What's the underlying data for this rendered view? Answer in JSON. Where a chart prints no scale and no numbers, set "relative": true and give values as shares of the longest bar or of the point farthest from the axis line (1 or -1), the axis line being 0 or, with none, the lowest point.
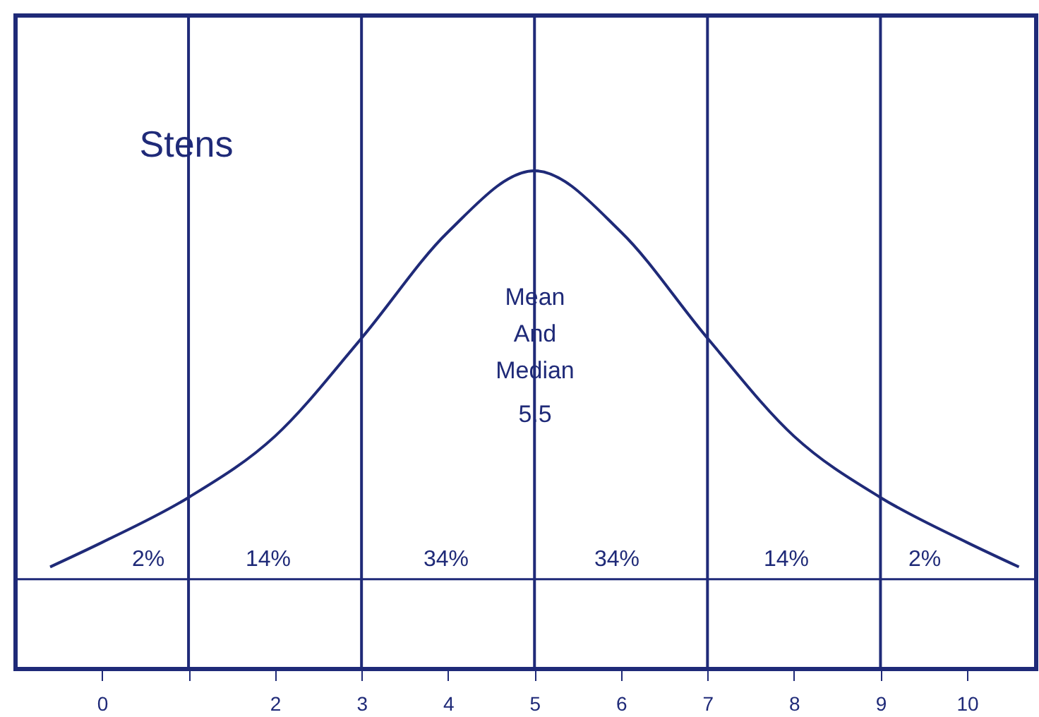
{
  "chart_data": {
    "type": "line",
    "relative": true,
    "x": [
      -0.6,
      0,
      1,
      2,
      3,
      4,
      5,
      6,
      7,
      8,
      9,
      10,
      10.6
    ],
    "series": [
      {
        "color": "#1f2a78",
        "values": [
          0.03,
          0.09,
          0.2,
          0.35,
          0.59,
          0.85,
          1,
          0.85,
          0.59,
          0.35,
          0.2,
          0.09,
          0.03
        ]
      }
    ],
    "xlim": [
      -1,
      10.8
    ],
    "xticks": [
      0,
      {
        "value": 1,
        "label": null
      },
      2,
      3,
      4,
      5,
      6,
      7,
      8,
      9,
      10
    ],
    "ref_lines": [
      {
        "axis": "x",
        "value": 1,
        "color": "#1f2a78"
      },
      {
        "axis": "x",
        "value": 3,
        "color": "#1f2a78"
      },
      {
        "axis": "x",
        "value": 5,
        "color": "#1f2a78"
      },
      {
        "axis": "x",
        "value": 7,
        "color": "#1f2a78"
      },
      {
        "axis": "x",
        "value": 9,
        "color": "#1f2a78"
      }
    ],
    "annotations": [
      "Stens",
      "Mean And Median",
      "5.5",
      "2%",
      "14%",
      "34%",
      "34%",
      "14%",
      "2%"
    ],
    "grid": false,
    "marker": "none",
    "line_style": "solid"
  }
}
